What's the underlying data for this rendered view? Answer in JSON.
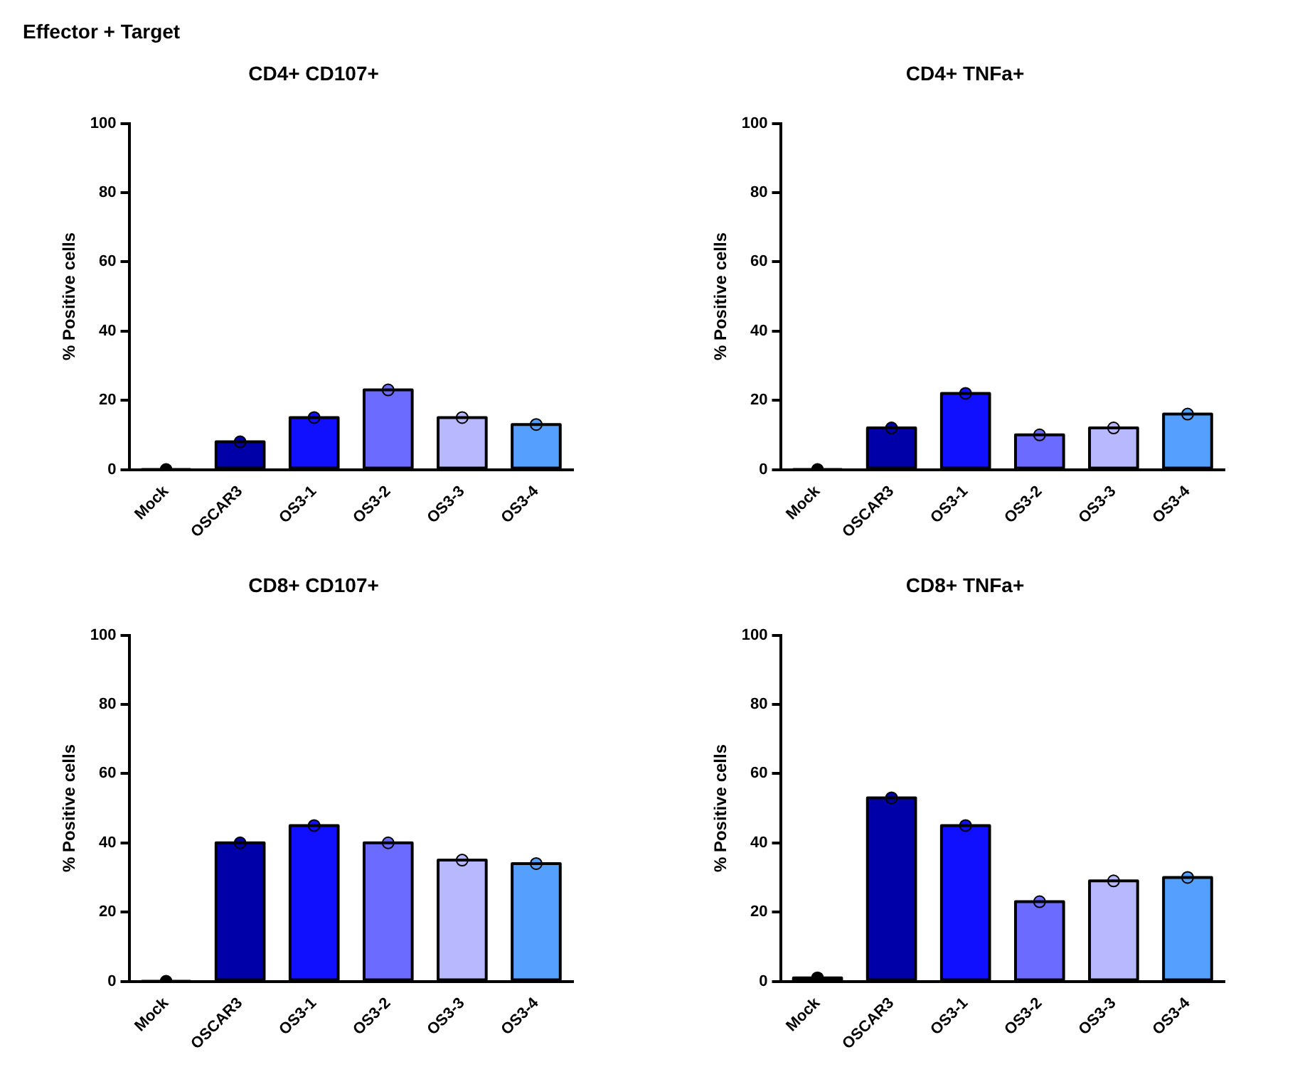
{
  "chart_data": [
    {
      "type": "bar",
      "annotations": [
        "Effector + Target"
      ],
      "title": "CD4+ CD107+",
      "ylabel": "% Positive cells",
      "categories": [
        "Mock",
        "OSCAR3",
        "OS3-1",
        "OS3-2",
        "OS3-3",
        "OS3-4"
      ],
      "ylim": [
        0,
        100
      ],
      "yticks": [
        0,
        20,
        40,
        60,
        80,
        100
      ],
      "grid": false,
      "legend": false,
      "series": [
        {
          "colors": [
            "#000000",
            "#0000a8",
            "#1010ff",
            "#6b6bff",
            "#b8b8ff",
            "#55a0ff"
          ],
          "values": [
            0,
            8,
            15,
            23,
            15,
            13
          ]
        },
        {
          "type": "scatter",
          "marker": "circle",
          "x": [
            "Mock",
            "OSCAR3",
            "OS3-1",
            "OS3-2",
            "OS3-3",
            "OS3-4"
          ],
          "colors": [
            "#000000",
            "#0000a8",
            "#1010ff",
            "#6b6bff",
            "#b8b8ff",
            "#55a0ff"
          ],
          "values": [
            0,
            8,
            15,
            23,
            15,
            13
          ]
        }
      ]
    },
    {
      "type": "bar",
      "title": "CD4+ TNFa+",
      "ylabel": "% Positive cells",
      "categories": [
        "Mock",
        "OSCAR3",
        "OS3-1",
        "OS3-2",
        "OS3-3",
        "OS3-4"
      ],
      "ylim": [
        0,
        100
      ],
      "yticks": [
        0,
        20,
        40,
        60,
        80,
        100
      ],
      "grid": false,
      "legend": false,
      "series": [
        {
          "colors": [
            "#000000",
            "#0000a8",
            "#1010ff",
            "#6b6bff",
            "#b8b8ff",
            "#55a0ff"
          ],
          "values": [
            0,
            12,
            22,
            10,
            12,
            16
          ]
        },
        {
          "type": "scatter",
          "marker": "circle",
          "x": [
            "Mock",
            "OSCAR3",
            "OS3-1",
            "OS3-2",
            "OS3-3",
            "OS3-4"
          ],
          "colors": [
            "#000000",
            "#0000a8",
            "#1010ff",
            "#6b6bff",
            "#b8b8ff",
            "#55a0ff"
          ],
          "values": [
            0,
            12,
            22,
            10,
            12,
            16
          ]
        }
      ]
    },
    {
      "type": "bar",
      "title": "CD8+ CD107+",
      "ylabel": "% Positive cells",
      "categories": [
        "Mock",
        "OSCAR3",
        "OS3-1",
        "OS3-2",
        "OS3-3",
        "OS3-4"
      ],
      "ylim": [
        0,
        100
      ],
      "yticks": [
        0,
        20,
        40,
        60,
        80,
        100
      ],
      "grid": false,
      "legend": false,
      "series": [
        {
          "colors": [
            "#000000",
            "#0000a8",
            "#1010ff",
            "#6b6bff",
            "#b8b8ff",
            "#55a0ff"
          ],
          "values": [
            0,
            40,
            45,
            40,
            35,
            34
          ]
        },
        {
          "type": "scatter",
          "marker": "circle",
          "x": [
            "Mock",
            "OSCAR3",
            "OS3-1",
            "OS3-2",
            "OS3-3",
            "OS3-4"
          ],
          "colors": [
            "#000000",
            "#0000a8",
            "#1010ff",
            "#6b6bff",
            "#b8b8ff",
            "#55a0ff"
          ],
          "values": [
            0,
            40,
            45,
            40,
            35,
            34
          ]
        }
      ]
    },
    {
      "type": "bar",
      "title": "CD8+ TNFa+",
      "ylabel": "% Positive cells",
      "categories": [
        "Mock",
        "OSCAR3",
        "OS3-1",
        "OS3-2",
        "OS3-3",
        "OS3-4"
      ],
      "ylim": [
        0,
        100
      ],
      "yticks": [
        0,
        20,
        40,
        60,
        80,
        100
      ],
      "grid": false,
      "legend": false,
      "series": [
        {
          "colors": [
            "#000000",
            "#0000a8",
            "#1010ff",
            "#6b6bff",
            "#b8b8ff",
            "#55a0ff"
          ],
          "values": [
            1,
            53,
            45,
            23,
            29,
            30
          ]
        },
        {
          "type": "scatter",
          "marker": "circle",
          "x": [
            "Mock",
            "OSCAR3",
            "OS3-1",
            "OS3-2",
            "OS3-3",
            "OS3-4"
          ],
          "colors": [
            "#000000",
            "#0000a8",
            "#1010ff",
            "#6b6bff",
            "#b8b8ff",
            "#55a0ff"
          ],
          "values": [
            1,
            53,
            45,
            23,
            29,
            30
          ]
        }
      ]
    }
  ]
}
